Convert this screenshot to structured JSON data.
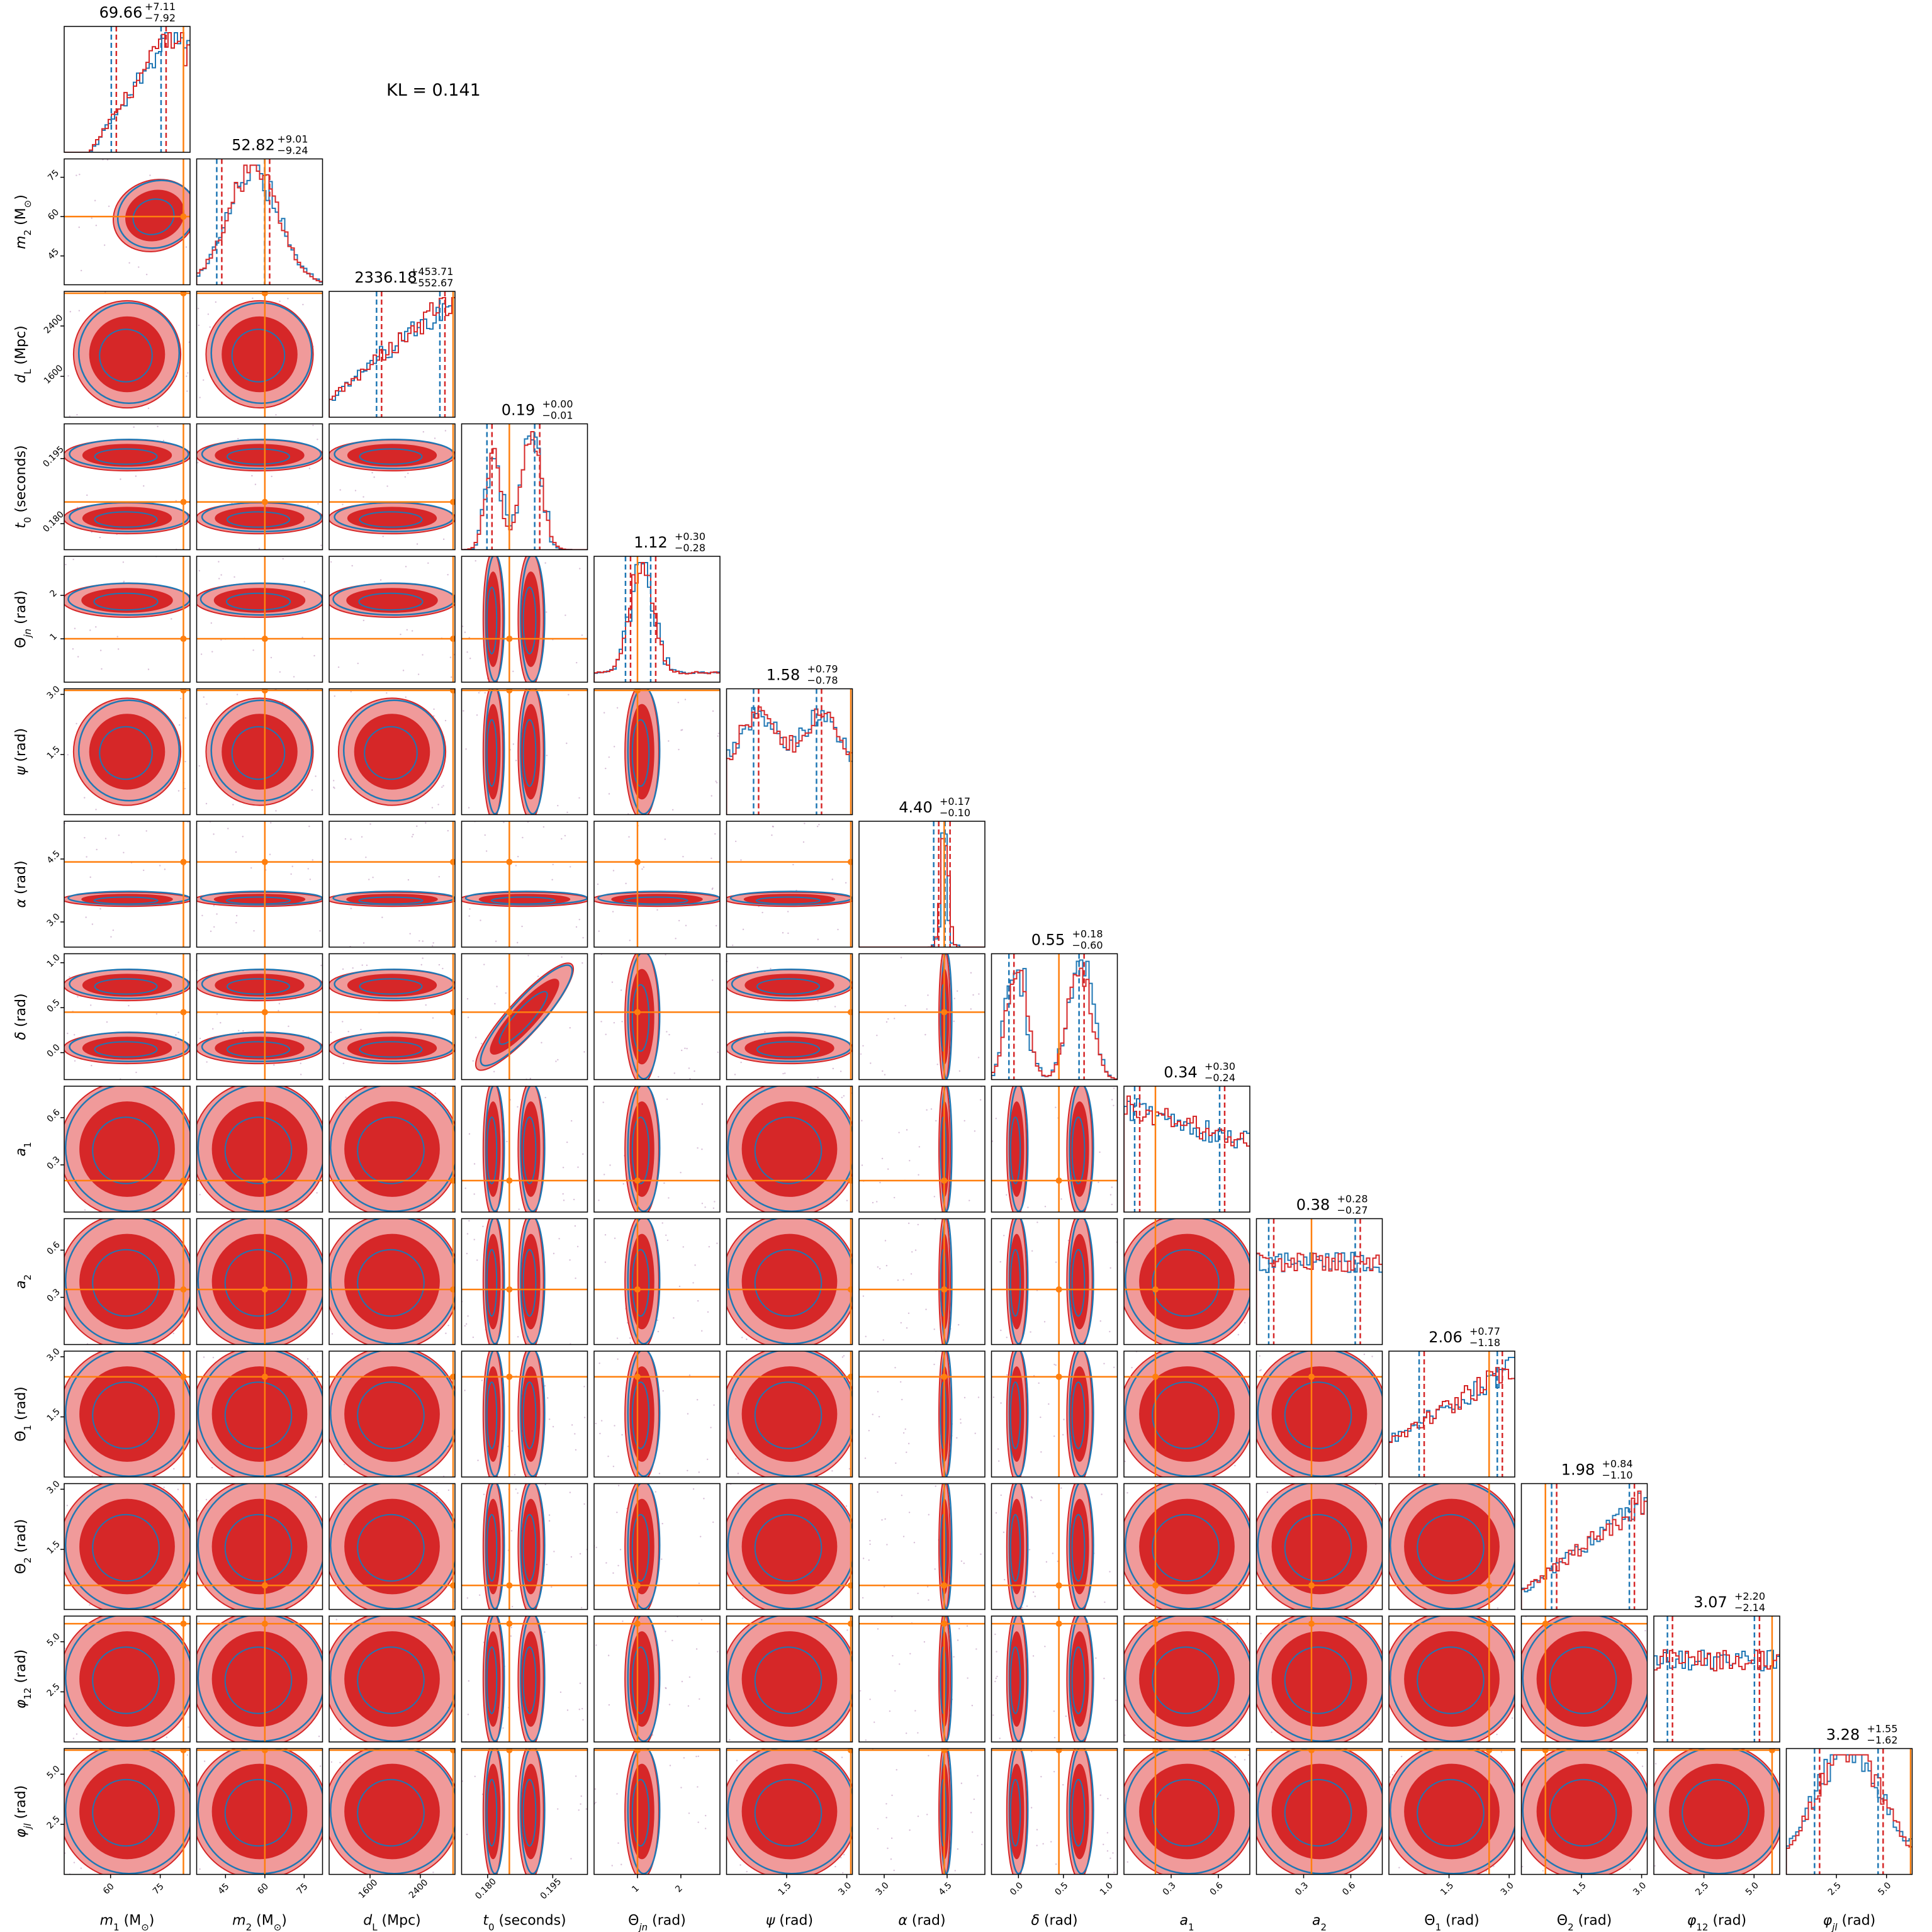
{
  "annotation": "KL = 0.141",
  "chart_data": {
    "type": "corner",
    "series": [
      {
        "name": "",
        "color": "#d62728"
      },
      {
        "name": "",
        "color": "#1f77b4"
      }
    ],
    "truth_color": "#ff7f0e",
    "parameters": [
      {
        "label": "m₁ (M⊙)",
        "label_html": "m<sub>1</sub> (M<sub>⊙</sub>)",
        "range": [
          46,
          84
        ],
        "truth": 82,
        "ticks": [
          "60",
          "75"
        ],
        "tick_values": [
          60,
          75
        ],
        "summary": "69.66",
        "plus": "+7.11",
        "minus": "−7.92",
        "median": 69.66,
        "lo": 61.74,
        "hi": 76.77
      },
      {
        "label": "m₂ (M⊙)",
        "range": [
          34,
          82
        ],
        "truth": 60,
        "ticks": [
          "45",
          "60",
          "75"
        ],
        "tick_values": [
          45,
          60,
          75
        ],
        "summary": "52.82",
        "plus": "+9.01",
        "minus": "−9.24",
        "median": 52.82,
        "lo": 43.58,
        "hi": 61.83
      },
      {
        "label": "dL (Mpc)",
        "range": [
          950,
          2950
        ],
        "truth": 2920,
        "ticks": [
          "1600",
          "2400"
        ],
        "tick_values": [
          1600,
          2400
        ],
        "summary": "2336.18",
        "plus": "+453.71",
        "minus": "−552.67",
        "median": 2336.18,
        "lo": 1783.51,
        "hi": 2789.89
      },
      {
        "label": "t0 (seconds)",
        "range": [
          0.174,
          0.203
        ],
        "truth": 0.185,
        "ticks": [
          "0.180",
          "0.195"
        ],
        "tick_values": [
          0.18,
          0.195
        ],
        "summary": "0.19",
        "plus": "+0.00",
        "minus": "−0.01",
        "median": 0.189,
        "lo": 0.181,
        "hi": 0.192
      },
      {
        "label": "Θjn (rad)",
        "range": [
          0.0,
          2.9
        ],
        "truth": 1.0,
        "ticks": [
          "1",
          "2"
        ],
        "tick_values": [
          1,
          2
        ],
        "summary": "1.12",
        "plus": "+0.30",
        "minus": "−0.28",
        "median": 1.12,
        "lo": 0.84,
        "hi": 1.42
      },
      {
        "label": "ψ (rad)",
        "range": [
          0.0,
          3.14
        ],
        "truth": 3.1,
        "ticks": [
          "1.5",
          "3.0"
        ],
        "tick_values": [
          1.5,
          3.0
        ],
        "summary": "1.58",
        "plus": "+0.79",
        "minus": "−0.78",
        "median": 1.58,
        "lo": 0.8,
        "hi": 2.37
      },
      {
        "label": "α (rad)",
        "range": [
          2.4,
          5.4
        ],
        "truth": 4.43,
        "ticks": [
          "3.0",
          "4.5"
        ],
        "tick_values": [
          3.0,
          4.5
        ],
        "summary": "4.40",
        "plus": "+0.17",
        "minus": "−0.10",
        "median": 4.4,
        "lo": 4.3,
        "hi": 4.57
      },
      {
        "label": "δ (rad)",
        "range": [
          -0.3,
          1.1
        ],
        "truth": 0.45,
        "ticks": [
          "0.0",
          "0.5",
          "1.0"
        ],
        "tick_values": [
          0.0,
          0.5,
          1.0
        ],
        "summary": "0.55",
        "plus": "+0.18",
        "minus": "−0.60",
        "median": 0.55,
        "lo": -0.05,
        "hi": 0.73
      },
      {
        "label": "a1",
        "range": [
          0.0,
          0.8
        ],
        "truth": 0.2,
        "ticks": [
          "0.3",
          "0.6"
        ],
        "tick_values": [
          0.3,
          0.6
        ],
        "summary": "0.34",
        "plus": "+0.30",
        "minus": "−0.24",
        "median": 0.34,
        "lo": 0.1,
        "hi": 0.64
      },
      {
        "label": "a2",
        "range": [
          0.0,
          0.8
        ],
        "truth": 0.35,
        "ticks": [
          "0.3",
          "0.6"
        ],
        "tick_values": [
          0.3,
          0.6
        ],
        "summary": "0.38",
        "plus": "+0.28",
        "minus": "−0.27",
        "median": 0.38,
        "lo": 0.11,
        "hi": 0.66
      },
      {
        "label": "Θ1 (rad)",
        "range": [
          0.0,
          3.14
        ],
        "truth": 2.5,
        "ticks": [
          "1.5",
          "3.0"
        ],
        "tick_values": [
          1.5,
          3.0
        ],
        "summary": "2.06",
        "plus": "+0.77",
        "minus": "−1.18",
        "median": 2.06,
        "lo": 0.88,
        "hi": 2.83
      },
      {
        "label": "Θ2 (rad)",
        "range": [
          0.0,
          3.14
        ],
        "truth": 0.6,
        "ticks": [
          "1.5",
          "3.0"
        ],
        "tick_values": [
          1.5,
          3.0
        ],
        "summary": "1.98",
        "plus": "+0.84",
        "minus": "−1.10",
        "median": 1.98,
        "lo": 0.88,
        "hi": 2.82
      },
      {
        "label": "φ12 (rad)",
        "range": [
          0.0,
          6.28
        ],
        "truth": 5.9,
        "ticks": [
          "2.5",
          "5.0"
        ],
        "tick_values": [
          2.5,
          5.0
        ],
        "summary": "3.07",
        "plus": "+2.20",
        "minus": "−2.14",
        "median": 3.07,
        "lo": 0.93,
        "hi": 5.27
      },
      {
        "label": "φjl (rad)",
        "range": [
          0.0,
          6.28
        ],
        "truth": 6.2,
        "ticks": [
          "2.5",
          "5.0"
        ],
        "tick_values": [
          2.5,
          5.0
        ],
        "summary": "3.28",
        "plus": "+1.55",
        "minus": "−1.62",
        "median": 3.28,
        "lo": 1.66,
        "hi": 4.83
      }
    ]
  }
}
